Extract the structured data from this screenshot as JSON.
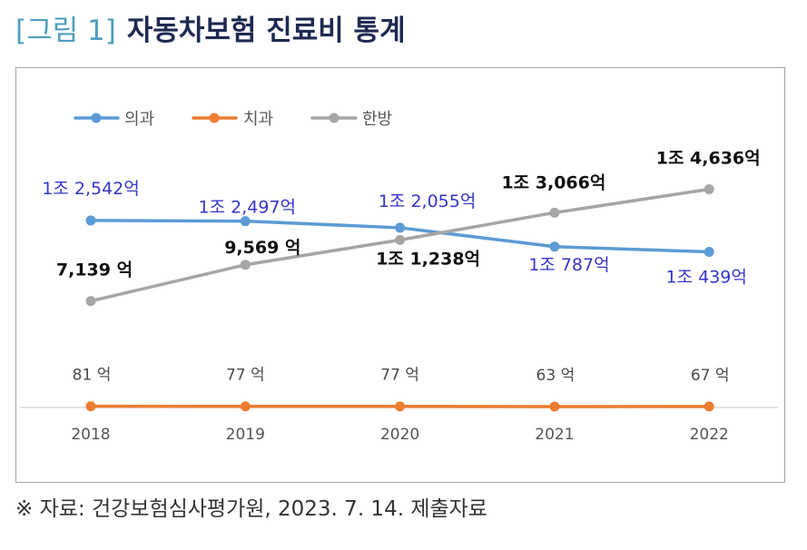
{
  "figure": {
    "number_label": "[그림 1]",
    "title": "자동차보험 진료비 통계"
  },
  "colors": {
    "figure_label": "#4f9fbc",
    "title": "#1e2a52",
    "frame_border": "#a3a3a3",
    "axis_line": "#d9d9d9"
  },
  "chart_data": {
    "type": "line",
    "categories": [
      "2018",
      "2019",
      "2020",
      "2021",
      "2022"
    ],
    "series": [
      {
        "name": "의과",
        "values": [
          12542,
          12497,
          12055,
          10787,
          10439
        ],
        "labels": [
          "1조 2,542억",
          "1조 2,497억",
          "1조 2,055억",
          "1조 787억",
          "1조 439억"
        ],
        "color": "#5b9bd5",
        "label_color": "#3535c8"
      },
      {
        "name": "치과",
        "values": [
          81,
          77,
          77,
          63,
          67
        ],
        "labels": [
          "81 억",
          "77 억",
          "77 억",
          "63 억",
          "67 억"
        ],
        "color": "#ed7d31",
        "label_color": "#4a4a4a"
      },
      {
        "name": "한방",
        "values": [
          7139,
          9569,
          11238,
          13066,
          14636
        ],
        "labels": [
          "7,139 억",
          "9,569 억",
          "1조 1,238억",
          "1조 3,066억",
          "1조 4,636억"
        ],
        "color": "#a5a5a5",
        "label_color": "#111111"
      }
    ],
    "legend": "top-left",
    "grid": false,
    "markers": true
  },
  "source": "※ 자료: 건강보험심사평가원, 2023. 7. 14. 제출자료"
}
